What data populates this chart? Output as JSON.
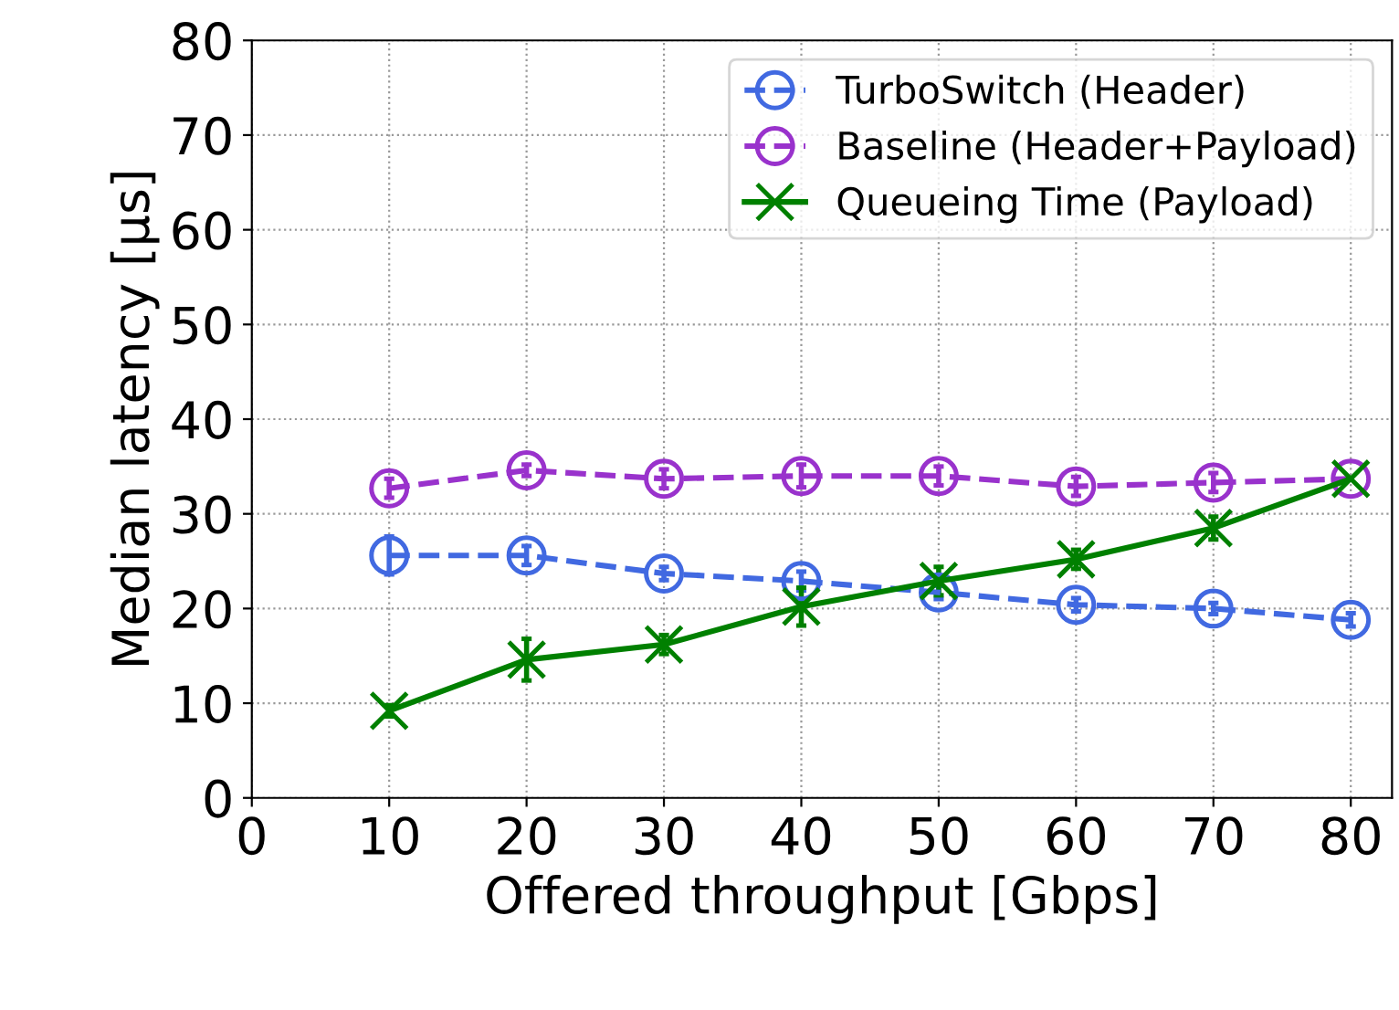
{
  "chart_data": {
    "type": "line",
    "xlabel": "Offered throughput [Gbps]",
    "ylabel": "Median latency [µs]",
    "x": [
      10,
      20,
      30,
      40,
      50,
      60,
      70,
      80
    ],
    "series": [
      {
        "name": "TurboSwitch (Header)",
        "color": "#4169e1",
        "marker": "circle",
        "line_style": "dashed",
        "values": [
          25.6,
          25.6,
          23.7,
          22.9,
          21.7,
          20.4,
          20.0,
          18.8
        ],
        "errors": [
          2,
          1,
          0.7,
          1,
          0.7,
          0.7,
          0.6,
          0.7
        ]
      },
      {
        "name": "Baseline (Header+Payload)",
        "color": "#9932cc",
        "marker": "circle",
        "line_style": "dashed",
        "values": [
          32.7,
          34.6,
          33.7,
          34.0,
          34.0,
          32.9,
          33.3,
          33.7
        ],
        "errors": [
          1,
          0.6,
          1,
          1.2,
          1,
          1,
          1,
          null
        ]
      },
      {
        "name": "Queueing Time (Payload)",
        "color": "#008000",
        "marker": "cross",
        "line_style": "solid",
        "values": [
          9.2,
          14.6,
          16.2,
          20.2,
          22.9,
          25.2,
          28.5,
          33.7
        ],
        "errors": [
          0.6,
          2.2,
          1,
          2,
          1.5,
          1,
          1.2,
          null
        ]
      }
    ],
    "xlim": [
      0,
      83
    ],
    "xticks": [
      0,
      10,
      20,
      30,
      40,
      50,
      60,
      70,
      80
    ],
    "ylim": [
      0,
      80
    ],
    "yticks": [
      0,
      10,
      20,
      30,
      40,
      50,
      60,
      70,
      80
    ],
    "grid": true,
    "legend": "top right"
  }
}
